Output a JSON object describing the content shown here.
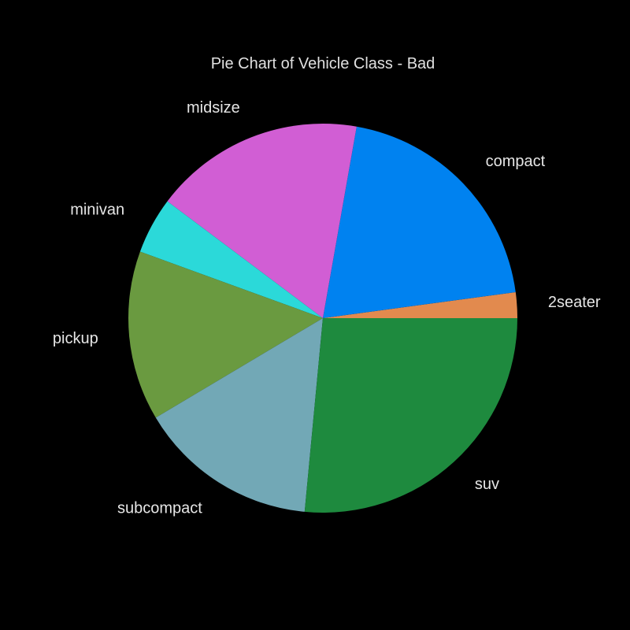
{
  "chart_data": {
    "type": "pie",
    "title": "Pie Chart of Vehicle Class - Bad",
    "start_angle_deg": 0,
    "direction": "counterclockwise",
    "slices": [
      {
        "label": "2seater",
        "value": 5,
        "color": "#e28a4e"
      },
      {
        "label": "compact",
        "value": 47,
        "color": "#0082f0"
      },
      {
        "label": "midsize",
        "value": 41,
        "color": "#d15ed4"
      },
      {
        "label": "minivan",
        "value": 11,
        "color": "#2bd9d9"
      },
      {
        "label": "pickup",
        "value": 33,
        "color": "#6a9a40"
      },
      {
        "label": "subcompact",
        "value": 35,
        "color": "#72a8b6"
      },
      {
        "label": "suv",
        "value": 62,
        "color": "#1e8a3e"
      }
    ]
  }
}
